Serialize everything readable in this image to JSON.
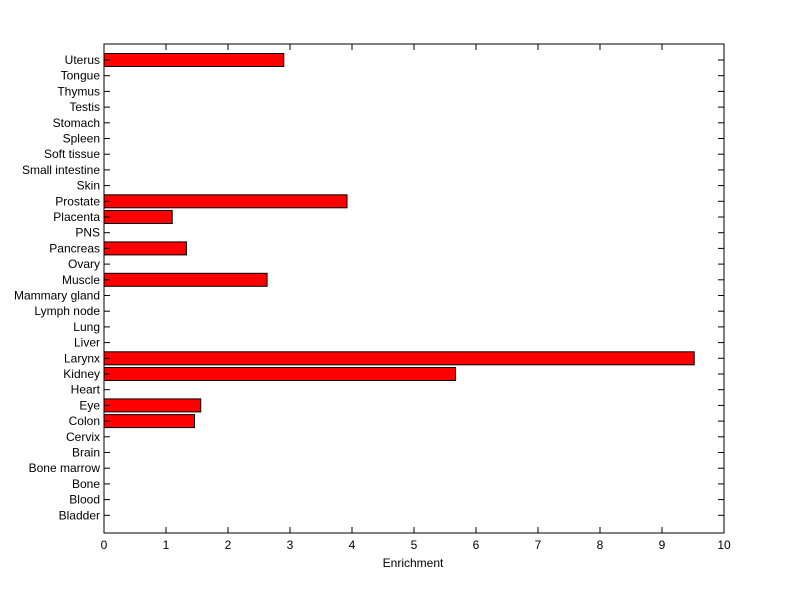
{
  "chart_data": {
    "type": "bar",
    "orientation": "horizontal",
    "title": "",
    "xlabel": "Enrichment",
    "ylabel": "",
    "xlim": [
      0,
      10
    ],
    "xticks": [
      0,
      1,
      2,
      3,
      4,
      5,
      6,
      7,
      8,
      9,
      10
    ],
    "grid": false,
    "legend": "none",
    "bar_color": "#ff0000",
    "categories": [
      "Uterus",
      "Tongue",
      "Thymus",
      "Testis",
      "Stomach",
      "Spleen",
      "Soft tissue",
      "Small intestine",
      "Skin",
      "Prostate",
      "Placenta",
      "PNS",
      "Pancreas",
      "Ovary",
      "Muscle",
      "Mammary gland",
      "Lymph node",
      "Lung",
      "Liver",
      "Larynx",
      "Kidney",
      "Heart",
      "Eye",
      "Colon",
      "Cervix",
      "Brain",
      "Bone marrow",
      "Bone",
      "Blood",
      "Bladder"
    ],
    "values": [
      2.9,
      0,
      0,
      0,
      0,
      0,
      0,
      0,
      0,
      3.92,
      1.1,
      0,
      1.33,
      0,
      2.63,
      0,
      0,
      0,
      0,
      9.52,
      5.67,
      0,
      1.56,
      1.46,
      0,
      0,
      0,
      0,
      0,
      0
    ]
  }
}
